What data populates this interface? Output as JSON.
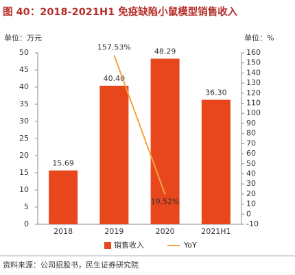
{
  "chart_data": {
    "type": "bar_line",
    "title": "图 40：2018-2021H1 免疫缺陷小鼠模型销售收入",
    "y_label": "单位：万元",
    "y2_label": "单位：%",
    "categories": [
      "2018",
      "2019",
      "2020",
      "2021H1"
    ],
    "series": [
      {
        "name": "销售收入",
        "type": "bar",
        "color": "#e8471e",
        "values": [
          15.69,
          40.4,
          48.29,
          36.3
        ],
        "value_labels": [
          "15.69",
          "40.40",
          "48.29",
          "36.30"
        ]
      },
      {
        "name": "YoY",
        "type": "line",
        "axis": "y2",
        "color": "#f7a23c",
        "values": [
          null,
          157.53,
          19.52,
          null
        ],
        "value_labels": [
          null,
          "157.53%",
          "19.52%",
          null
        ]
      }
    ],
    "ylim": [
      0,
      50
    ],
    "yticks": [
      0,
      5,
      10,
      15,
      20,
      25,
      30,
      35,
      40,
      45,
      50
    ],
    "y2lim": [
      -10,
      160
    ],
    "y2ticks": [
      -10,
      0,
      10,
      20,
      30,
      40,
      50,
      60,
      70,
      80,
      90,
      100,
      110,
      120,
      130,
      140,
      150,
      160
    ],
    "legend": "bottom",
    "source": "资料来源：公司招股书，民生证券研究院"
  }
}
